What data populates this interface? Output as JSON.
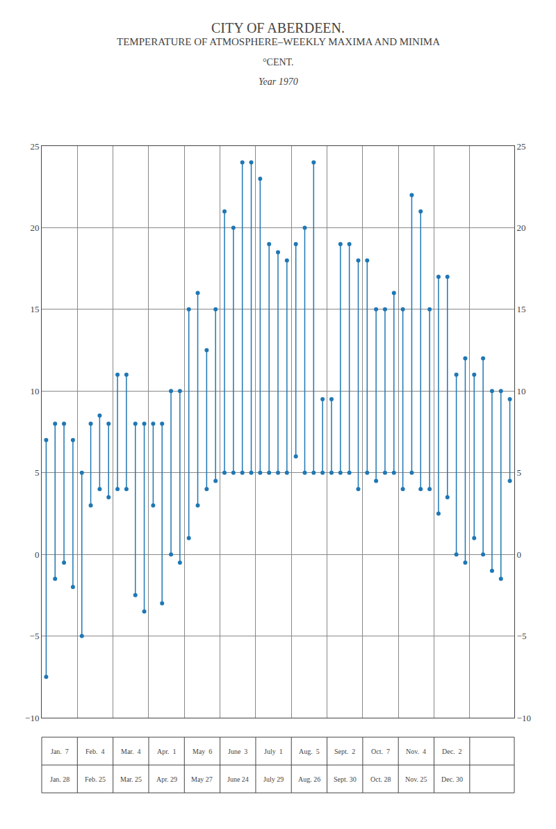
{
  "chart_data": {
    "type": "range",
    "title": "CITY OF ABERDEEN.",
    "subtitle": [
      "TEMPERATURE OF ATMOSPHERE–WEEKLY MAXIMA AND MINIMA",
      "°CENT.",
      "Year 1970"
    ],
    "x": [
      1,
      2,
      3,
      4,
      5,
      6,
      7,
      8,
      9,
      10,
      11,
      12,
      13,
      14,
      15,
      16,
      17,
      18,
      19,
      20,
      21,
      22,
      23,
      24,
      25,
      26,
      27,
      28,
      29,
      30,
      31,
      32,
      33,
      34,
      35,
      36,
      37,
      38,
      39,
      40,
      41,
      42,
      43,
      44,
      45,
      46,
      47,
      48,
      49,
      50,
      51,
      52,
      53
    ],
    "high": [
      7.0,
      8.0,
      8.0,
      7.0,
      5.0,
      8.0,
      8.5,
      8.0,
      11.0,
      11.0,
      8.0,
      8.0,
      8.0,
      8.0,
      10.0,
      10.0,
      15.0,
      16.0,
      12.5,
      15.0,
      21.0,
      20.0,
      24.0,
      24.0,
      23.0,
      19.0,
      18.5,
      18.0,
      19.0,
      20.0,
      24.0,
      9.5,
      9.5,
      19.0,
      19.0,
      18.0,
      18.0,
      15.0,
      15.0,
      16.0,
      15.0,
      22.0,
      21.0,
      15.0,
      17.0,
      17.0,
      11.0,
      12.0,
      11.0,
      12.0,
      10.0,
      10.0,
      9.5
    ],
    "low": [
      -7.5,
      -1.5,
      -0.5,
      -2.0,
      -5.0,
      3.0,
      4.0,
      3.5,
      4.0,
      4.0,
      -2.5,
      -3.5,
      3.0,
      -3.0,
      0.0,
      -0.5,
      1.0,
      3.0,
      4.0,
      4.5,
      5.0,
      5.0,
      5.0,
      5.0,
      5.0,
      5.0,
      5.0,
      5.0,
      6.0,
      5.0,
      5.0,
      5.0,
      5.0,
      5.0,
      5.0,
      4.0,
      5.0,
      4.5,
      5.0,
      5.0,
      4.0,
      5.0,
      4.0,
      4.0,
      2.5,
      3.5,
      0.0,
      -0.5,
      1.0,
      0.0,
      -1.0,
      -1.5,
      4.5
    ],
    "xlim": [
      0.5,
      53.5
    ],
    "xticks": [
      4.5,
      8.5,
      12.5,
      16.5,
      20.5,
      24.5,
      28.5,
      32.5,
      36.5,
      40.5,
      44.5,
      48.5
    ],
    "ylim": [
      -10,
      25
    ],
    "yticks": [
      {
        "value": -10,
        "label": "−10"
      },
      {
        "value": -5,
        "label": "−5"
      },
      0,
      5,
      10,
      15,
      20,
      25
    ],
    "y2lim": [
      -10,
      25
    ],
    "y2ticks": [
      {
        "value": -10,
        "label": "−10"
      },
      {
        "value": -5,
        "label": "−5"
      },
      0,
      5,
      10,
      15,
      20,
      25
    ],
    "grid": true,
    "tick_labels": "y",
    "column_labels": {
      "top": [
        "Jan.  7",
        "Feb.  4",
        "Mar.  4",
        "Apr.  1",
        "May  6",
        "June  3",
        "July  1",
        "Aug.  5",
        "Sept.  2",
        "Oct.  7",
        "Nov.  4",
        "Dec.  2"
      ],
      "bottom": [
        "Jan. 28",
        "Feb. 25",
        "Mar. 25",
        "Apr. 29",
        "May 27",
        "June 24",
        "July 29",
        "Aug. 26",
        "Sept. 30",
        "Oct. 28",
        "Nov. 25",
        "Dec. 30"
      ]
    }
  }
}
